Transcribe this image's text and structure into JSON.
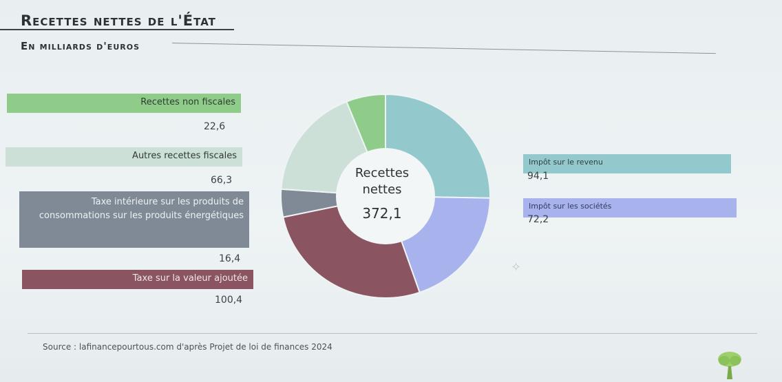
{
  "header": {
    "title": "Recettes nettes de l'État",
    "subtitle": "En milliards d'euros"
  },
  "footer": {
    "source": "Source : lafinancepourtous.com d'après Projet de loi de finances 2024"
  },
  "chart_data": {
    "type": "pie",
    "variant": "donut",
    "center_label": "Recettes nettes",
    "center_value": "372,1",
    "total": 372.1,
    "slices": [
      {
        "label": "Impôt sur le revenu",
        "value": 94.1,
        "display": "94,1",
        "color": "#93c8cc"
      },
      {
        "label": "Impôt sur les sociétés",
        "value": 72.2,
        "display": "72,2",
        "color": "#a8b2ec"
      },
      {
        "label": "Taxe sur la valeur ajoutée",
        "value": 100.4,
        "display": "100,4",
        "color": "#8a5560"
      },
      {
        "label": "Taxe intérieure sur les produits de consommations sur les produits énergétiques",
        "value": 16.4,
        "display": "16,4",
        "color": "#808a96"
      },
      {
        "label": "Autres recettes fiscales",
        "value": 66.3,
        "display": "66,3",
        "color": "#cde0d7"
      },
      {
        "label": "Recettes non fiscales",
        "value": 22.6,
        "display": "22,6",
        "color": "#8fcc8a"
      }
    ]
  }
}
